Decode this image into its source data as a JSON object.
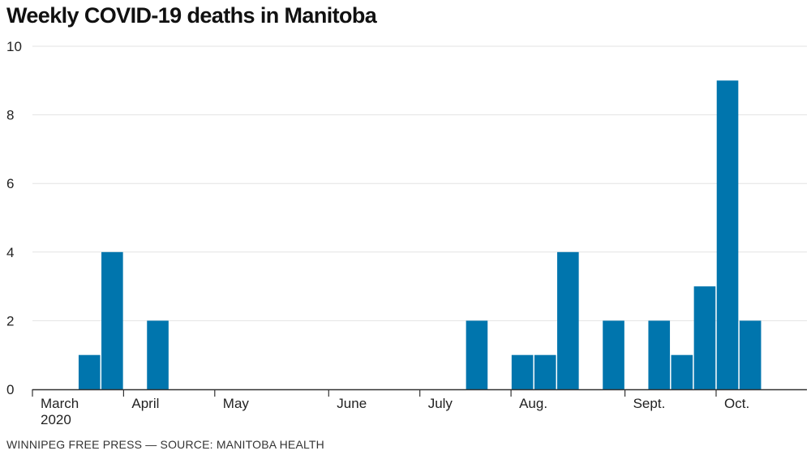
{
  "title": "Weekly COVID-19 deaths in Manitoba",
  "footer": "WINNIPEG FREE PRESS — SOURCE: MANITOBA HEALTH",
  "colors": {
    "bar": "#0075ad",
    "gridline": "#e3e3e3",
    "axis": "#333333",
    "text": "#222222"
  },
  "chart_data": {
    "type": "bar",
    "title": "Weekly COVID-19 deaths in Manitoba",
    "xlabel": "",
    "ylabel": "",
    "ylim": [
      0,
      10
    ],
    "yticks": [
      0,
      2,
      4,
      6,
      8,
      10
    ],
    "grid": true,
    "x_labels": [
      "March",
      "April",
      "May",
      "June",
      "July",
      "Aug.",
      "Sept.",
      "Oct."
    ],
    "x_sublabels": [
      "2020",
      "",
      "",
      "",
      "",
      "",
      "",
      ""
    ],
    "x_label_start_weeks": [
      0,
      4,
      8,
      13,
      17,
      21,
      26,
      30
    ],
    "weeks": [
      1,
      2,
      3,
      4,
      5,
      6,
      7,
      8,
      9,
      10,
      11,
      12,
      13,
      14,
      15,
      16,
      17,
      18,
      19,
      20,
      21,
      22,
      23,
      24,
      25,
      26,
      27,
      28,
      29,
      30,
      31,
      32,
      33
    ],
    "values": [
      0,
      0,
      1,
      4,
      0,
      2,
      0,
      0,
      0,
      0,
      0,
      0,
      0,
      0,
      0,
      0,
      0,
      0,
      0,
      2,
      0,
      1,
      1,
      4,
      0,
      2,
      0,
      2,
      1,
      3,
      9,
      2,
      0
    ]
  }
}
